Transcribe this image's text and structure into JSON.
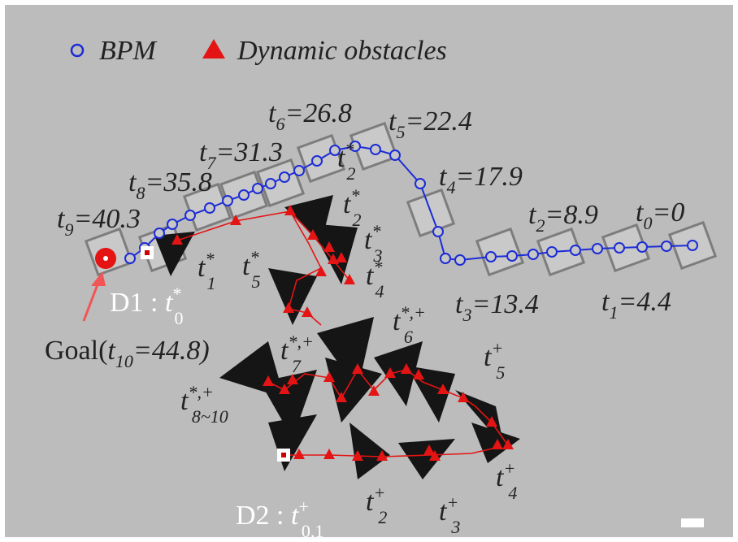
{
  "legend": {
    "bpm": "BPM",
    "obstacles": "Dynamic obstacles"
  },
  "bpm_labels": [
    {
      "t": "t",
      "sub": "9",
      "rest": "=40.3"
    },
    {
      "t": "t",
      "sub": "8",
      "rest": "=35.8"
    },
    {
      "t": "t",
      "sub": "7",
      "rest": "=31.3"
    },
    {
      "t": "t",
      "sub": "6",
      "rest": "=26.8"
    },
    {
      "t": "t",
      "sub": "5",
      "rest": "=22.4"
    },
    {
      "t": "t",
      "sub": "4",
      "rest": "=17.9"
    },
    {
      "t": "t",
      "sub": "2",
      "rest": "=8.9"
    },
    {
      "t": "t",
      "sub": "0",
      "rest": "=0"
    },
    {
      "t": "t",
      "sub": "3",
      "rest": "=13.4"
    },
    {
      "t": "t",
      "sub": "1",
      "rest": "=4.4"
    }
  ],
  "goal": {
    "prefix": "Goal(",
    "t": "t",
    "sub": "10",
    "rest": "=44.8)"
  },
  "d1": {
    "prefix": "D1 : ",
    "t": "t",
    "sup": "*",
    "sub": "0"
  },
  "d2": {
    "prefix": "D2 : ",
    "t": "t",
    "sup": "+",
    "sub": "0,1"
  },
  "obstacle_labels": [
    {
      "t": "t",
      "sup": "*",
      "sub": "1"
    },
    {
      "t": "t",
      "sup": "*",
      "sub": "5"
    },
    {
      "t": "t",
      "sup": "*",
      "sub": "2"
    },
    {
      "t": "t",
      "sup": "*",
      "sub": "2"
    },
    {
      "t": "t",
      "sup": "*",
      "sub": "3"
    },
    {
      "t": "t",
      "sup": "*",
      "sub": "4"
    },
    {
      "t": "t",
      "sup": "*,+",
      "sub": "6"
    },
    {
      "t": "t",
      "sup": "*,+",
      "sub": "7"
    },
    {
      "t": "t",
      "sup": "*,+",
      "sub": "8~10"
    },
    {
      "t": "t",
      "sup": "+",
      "sub": "5"
    },
    {
      "t": "t",
      "sup": "+",
      "sub": "4"
    },
    {
      "t": "t",
      "sup": "+",
      "sub": "2"
    },
    {
      "t": "t",
      "sup": "+",
      "sub": "3"
    }
  ]
}
